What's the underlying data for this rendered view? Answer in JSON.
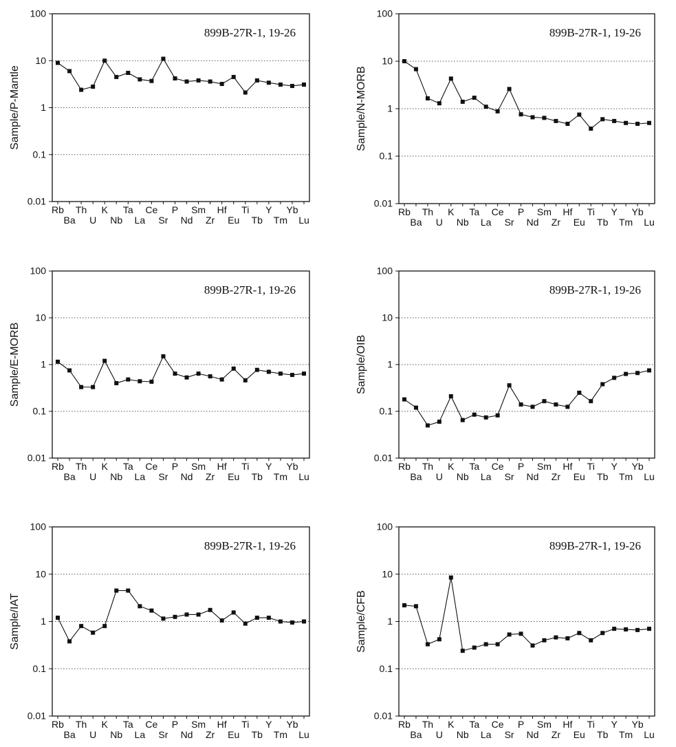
{
  "elements": [
    "Rb",
    "Ba",
    "Th",
    "U",
    "K",
    "Nb",
    "Ta",
    "La",
    "Ce",
    "Sr",
    "P",
    "Nd",
    "Sm",
    "Zr",
    "Hf",
    "Eu",
    "Ti",
    "Tb",
    "Y",
    "Tm",
    "Yb",
    "Lu"
  ],
  "chart_data": [
    {
      "type": "line",
      "ylabel": "Sample/P-Mantle",
      "annotation": "899B-27R-1, 19-26",
      "yscale": "log",
      "ylim": [
        0.01,
        100
      ],
      "yticks": [
        "100",
        "10",
        "1",
        "0.1",
        "0.01"
      ],
      "grid": "horizontal dotted",
      "series": [
        {
          "values": [
            9.0,
            6.0,
            2.4,
            2.8,
            10.0,
            4.5,
            5.5,
            4.0,
            3.7,
            11.0,
            4.2,
            3.6,
            3.8,
            3.6,
            3.2,
            4.5,
            2.1,
            3.8,
            3.4,
            3.1,
            2.9,
            3.1
          ]
        }
      ]
    },
    {
      "type": "line",
      "ylabel": "Sample/N-MORB",
      "annotation": "899B-27R-1, 19-26",
      "yscale": "log",
      "ylim": [
        0.01,
        100
      ],
      "yticks": [
        "100",
        "10",
        "1",
        "0.1",
        "0.01"
      ],
      "grid": "horizontal dotted",
      "series": [
        {
          "values": [
            10.0,
            6.8,
            1.65,
            1.3,
            4.3,
            1.4,
            1.7,
            1.1,
            0.88,
            2.6,
            0.76,
            0.66,
            0.64,
            0.55,
            0.48,
            0.75,
            0.38,
            0.6,
            0.55,
            0.5,
            0.48,
            0.5
          ]
        }
      ]
    },
    {
      "type": "line",
      "ylabel": "Sample/E-MORB",
      "annotation": "899B-27R-1, 19-26",
      "yscale": "log",
      "ylim": [
        0.01,
        100
      ],
      "yticks": [
        "100",
        "10",
        "1",
        "0.1",
        "0.01"
      ],
      "grid": "horizontal dotted",
      "series": [
        {
          "values": [
            1.15,
            0.75,
            0.33,
            0.33,
            1.2,
            0.4,
            0.48,
            0.44,
            0.43,
            1.5,
            0.64,
            0.53,
            0.64,
            0.56,
            0.48,
            0.82,
            0.46,
            0.77,
            0.7,
            0.64,
            0.6,
            0.64
          ]
        }
      ]
    },
    {
      "type": "line",
      "ylabel": "Sample/OIB",
      "annotation": "899B-27R-1, 19-26",
      "yscale": "log",
      "ylim": [
        0.01,
        100
      ],
      "yticks": [
        "100",
        "10",
        "1",
        "0.1",
        "0.01"
      ],
      "grid": "horizontal dotted",
      "series": [
        {
          "values": [
            0.18,
            0.12,
            0.05,
            0.06,
            0.21,
            0.065,
            0.085,
            0.074,
            0.082,
            0.36,
            0.14,
            0.125,
            0.165,
            0.14,
            0.125,
            0.25,
            0.165,
            0.38,
            0.52,
            0.63,
            0.66,
            0.75
          ]
        }
      ]
    },
    {
      "type": "line",
      "ylabel": "Sample/IAT",
      "annotation": "899B-27R-1, 19-26",
      "yscale": "log",
      "ylim": [
        0.01,
        100
      ],
      "yticks": [
        "100",
        "10",
        "1",
        "0.1",
        "0.01"
      ],
      "grid": "horizontal dotted",
      "series": [
        {
          "values": [
            1.2,
            0.38,
            0.8,
            0.58,
            0.8,
            4.5,
            4.5,
            2.1,
            1.7,
            1.15,
            1.25,
            1.4,
            1.4,
            1.75,
            1.05,
            1.55,
            0.9,
            1.2,
            1.2,
            1.0,
            0.95,
            1.0
          ]
        }
      ]
    },
    {
      "type": "line",
      "ylabel": "Sample/CFB",
      "annotation": "899B-27R-1, 19-26",
      "yscale": "log",
      "ylim": [
        0.01,
        100
      ],
      "yticks": [
        "100",
        "10",
        "1",
        "0.1",
        "0.01"
      ],
      "grid": "horizontal dotted",
      "series": [
        {
          "values": [
            2.2,
            2.1,
            0.33,
            0.42,
            8.5,
            0.24,
            0.28,
            0.33,
            0.33,
            0.53,
            0.55,
            0.31,
            0.4,
            0.46,
            0.44,
            0.57,
            0.4,
            0.57,
            0.7,
            0.68,
            0.66,
            0.7
          ]
        }
      ]
    }
  ]
}
